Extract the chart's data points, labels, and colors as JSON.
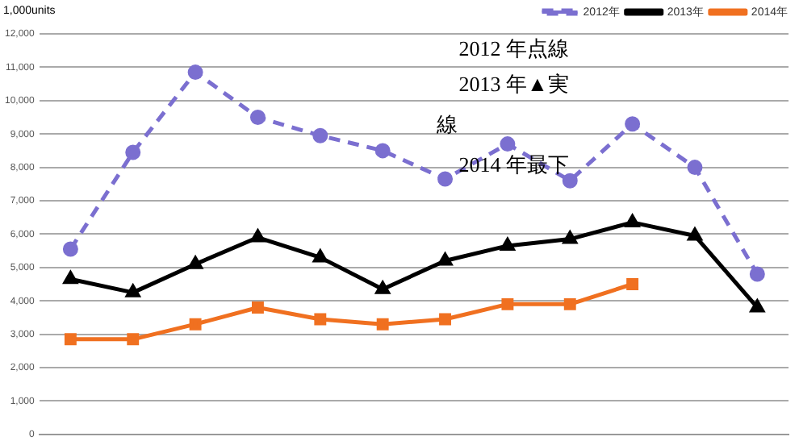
{
  "chart_data": {
    "type": "line",
    "ylabel": "1,000units",
    "categories": [
      null,
      null,
      null,
      null,
      null,
      null,
      null,
      null,
      null,
      null,
      null,
      null
    ],
    "series": [
      {
        "name": "2012年",
        "color": "#7b6fd0",
        "marker": "circle",
        "line_style": "dashed",
        "values": [
          5550,
          8450,
          10850,
          9500,
          8950,
          8500,
          7650,
          8700,
          7600,
          9300,
          8000,
          4800
        ]
      },
      {
        "name": "2013年",
        "color": "#000000",
        "marker": "triangle",
        "line_style": "solid",
        "values": [
          4650,
          4250,
          5100,
          5900,
          5300,
          4350,
          5200,
          5650,
          5850,
          6350,
          5950,
          3800
        ]
      },
      {
        "name": "2014年",
        "color": "#f07020",
        "marker": "square",
        "line_style": "solid",
        "values": [
          2850,
          2850,
          3300,
          3800,
          3450,
          3300,
          3450,
          3900,
          3900,
          4500,
          null,
          null
        ]
      }
    ],
    "ylim": [
      0,
      12000
    ],
    "yticks": [
      0,
      {
        "value": 1000,
        "label": "1,000"
      },
      {
        "value": 2000,
        "label": "2,000"
      },
      {
        "value": 3000,
        "label": "3,000"
      },
      {
        "value": 4000,
        "label": "4,000"
      },
      {
        "value": 5000,
        "label": "5,000"
      },
      {
        "value": 6000,
        "label": "6,000"
      },
      {
        "value": 7000,
        "label": "7,000"
      },
      {
        "value": 8000,
        "label": "8,000"
      },
      {
        "value": 9000,
        "label": "9,000"
      },
      {
        "value": 10000,
        "label": "10,000"
      },
      {
        "value": 11000,
        "label": "11,000"
      },
      {
        "value": 12000,
        "label": "12,000"
      }
    ],
    "grid": "y",
    "legend": "top right",
    "tick_labels": "y",
    "annotations": [
      "2012 年点線",
      "2013 年▲実",
      "線",
      "2014 年最下"
    ]
  }
}
